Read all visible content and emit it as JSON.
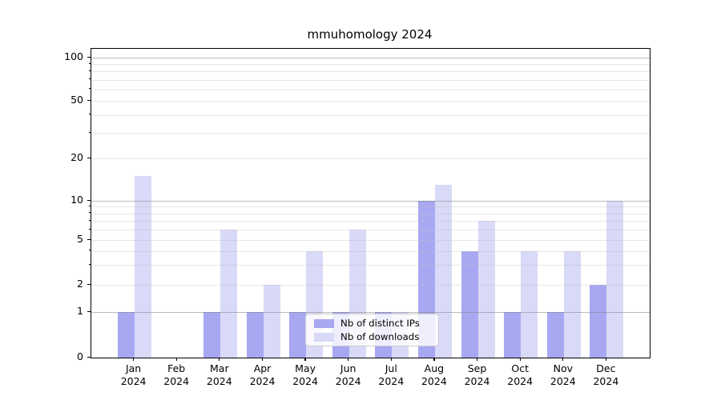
{
  "chart_data": {
    "type": "bar",
    "title": "mmuhomology 2024",
    "categories": [
      "Jan 2024",
      "Feb 2024",
      "Mar 2024",
      "Apr 2024",
      "May 2024",
      "Jun 2024",
      "Jul 2024",
      "Aug 2024",
      "Sep 2024",
      "Oct 2024",
      "Nov 2024",
      "Dec 2024"
    ],
    "x_tick_labels": [
      {
        "line1": "Jan",
        "line2": "2024"
      },
      {
        "line1": "Feb",
        "line2": "2024"
      },
      {
        "line1": "Mar",
        "line2": "2024"
      },
      {
        "line1": "Apr",
        "line2": "2024"
      },
      {
        "line1": "May",
        "line2": "2024"
      },
      {
        "line1": "Jun",
        "line2": "2024"
      },
      {
        "line1": "Jul",
        "line2": "2024"
      },
      {
        "line1": "Aug",
        "line2": "2024"
      },
      {
        "line1": "Sep",
        "line2": "2024"
      },
      {
        "line1": "Oct",
        "line2": "2024"
      },
      {
        "line1": "Nov",
        "line2": "2024"
      },
      {
        "line1": "Dec",
        "line2": "2024"
      }
    ],
    "series": [
      {
        "name": "Nb of distinct IPs",
        "color": "#a8a8f2",
        "values": [
          1,
          0,
          1,
          1,
          1,
          1,
          1,
          10,
          4,
          1,
          1,
          2
        ]
      },
      {
        "name": "Nb of downloads",
        "color": "#d9d9f8",
        "values": [
          15,
          0,
          6,
          2,
          4,
          6,
          1,
          13,
          7,
          4,
          4,
          10
        ]
      }
    ],
    "y_axis": {
      "scale": "log-like with linear 0-1 segment",
      "labeled_ticks": [
        0,
        1,
        2,
        5,
        10,
        20,
        50,
        100
      ],
      "major_gridlines": [
        1,
        10,
        100
      ],
      "minor_gridlines": [
        2,
        3,
        4,
        5,
        6,
        7,
        8,
        9,
        20,
        30,
        40,
        50,
        60,
        70,
        80,
        90
      ],
      "ylim": [
        0,
        115
      ]
    },
    "xlabel": "",
    "ylabel": "",
    "grid": "on, drawn above bars",
    "legend_position": "bottom center"
  }
}
